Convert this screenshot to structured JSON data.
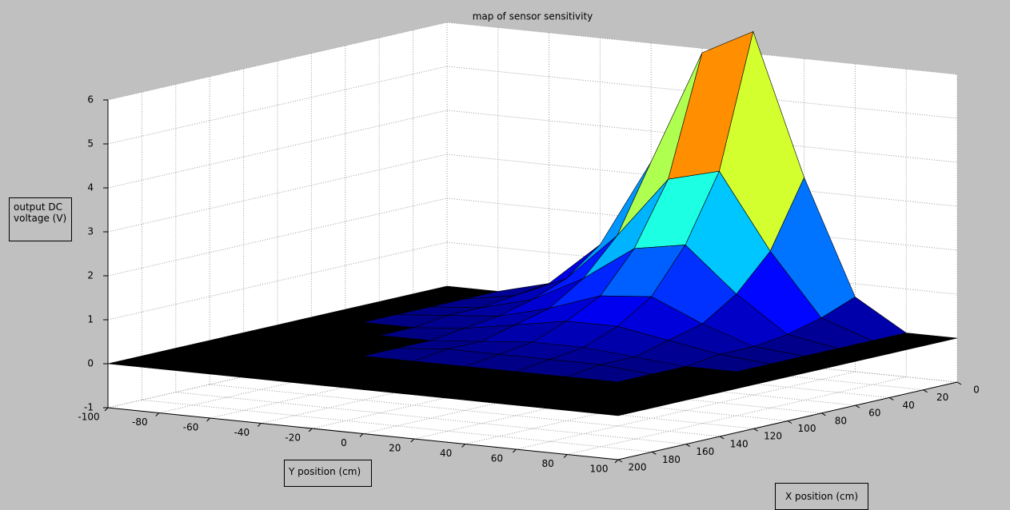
{
  "chart_data": {
    "type": "surface",
    "title": "map of sensor sensitivity",
    "xlabel": "X position (cm)",
    "ylabel": "Y position (cm)",
    "zlabel": "output DC voltage (V)",
    "colormap": "jet",
    "grid": true,
    "x": [
      0,
      20,
      40,
      60,
      80,
      100,
      120,
      140,
      160,
      180,
      200
    ],
    "y": [
      -100,
      -80,
      -60,
      -40,
      -20,
      0,
      20,
      40,
      60,
      80,
      100
    ],
    "z": [
      [
        0,
        0,
        0.3,
        1.3,
        3.3,
        5.9,
        6.5,
        3.3,
        0.7,
        0,
        0
      ],
      [
        0,
        0,
        0.2,
        0.7,
        1.8,
        3.2,
        3.5,
        1.8,
        0.4,
        0,
        0
      ],
      [
        0,
        0,
        0.1,
        0.4,
        1.0,
        1.8,
        2.0,
        1.0,
        0.2,
        0,
        0
      ],
      [
        0,
        0,
        0.1,
        0.2,
        0.5,
        0.9,
        1.0,
        0.5,
        0.1,
        0,
        0
      ],
      [
        0,
        0,
        0,
        0.1,
        0.3,
        0.5,
        0.5,
        0.3,
        0.1,
        0,
        0
      ],
      [
        0,
        0,
        0,
        0,
        0.1,
        0.2,
        0.2,
        0.1,
        0,
        0,
        0
      ],
      [
        0,
        0,
        0,
        0,
        0.1,
        0.1,
        0.1,
        0.1,
        0,
        0,
        0
      ],
      [
        0,
        0,
        0,
        0,
        0,
        0,
        0,
        0,
        0,
        0,
        0
      ],
      [
        0,
        0,
        0,
        0,
        0,
        0,
        0,
        0,
        0,
        0,
        0
      ],
      [
        0,
        0,
        0,
        0,
        0,
        0,
        0,
        0,
        0,
        0,
        0
      ],
      [
        0,
        0,
        0,
        0,
        0,
        0,
        0,
        0,
        0,
        0,
        0
      ]
    ],
    "xlim": [
      0,
      200
    ],
    "ylim": [
      -100,
      100
    ],
    "zlim": [
      -1,
      6
    ],
    "xticks": [
      0,
      20,
      40,
      60,
      80,
      100,
      120,
      140,
      160,
      180,
      200
    ],
    "yticks": [
      -100,
      -80,
      -60,
      -40,
      -20,
      0,
      20,
      40,
      60,
      80,
      100
    ],
    "zticks": [
      -1,
      0,
      1,
      2,
      3,
      4,
      5,
      6
    ]
  }
}
